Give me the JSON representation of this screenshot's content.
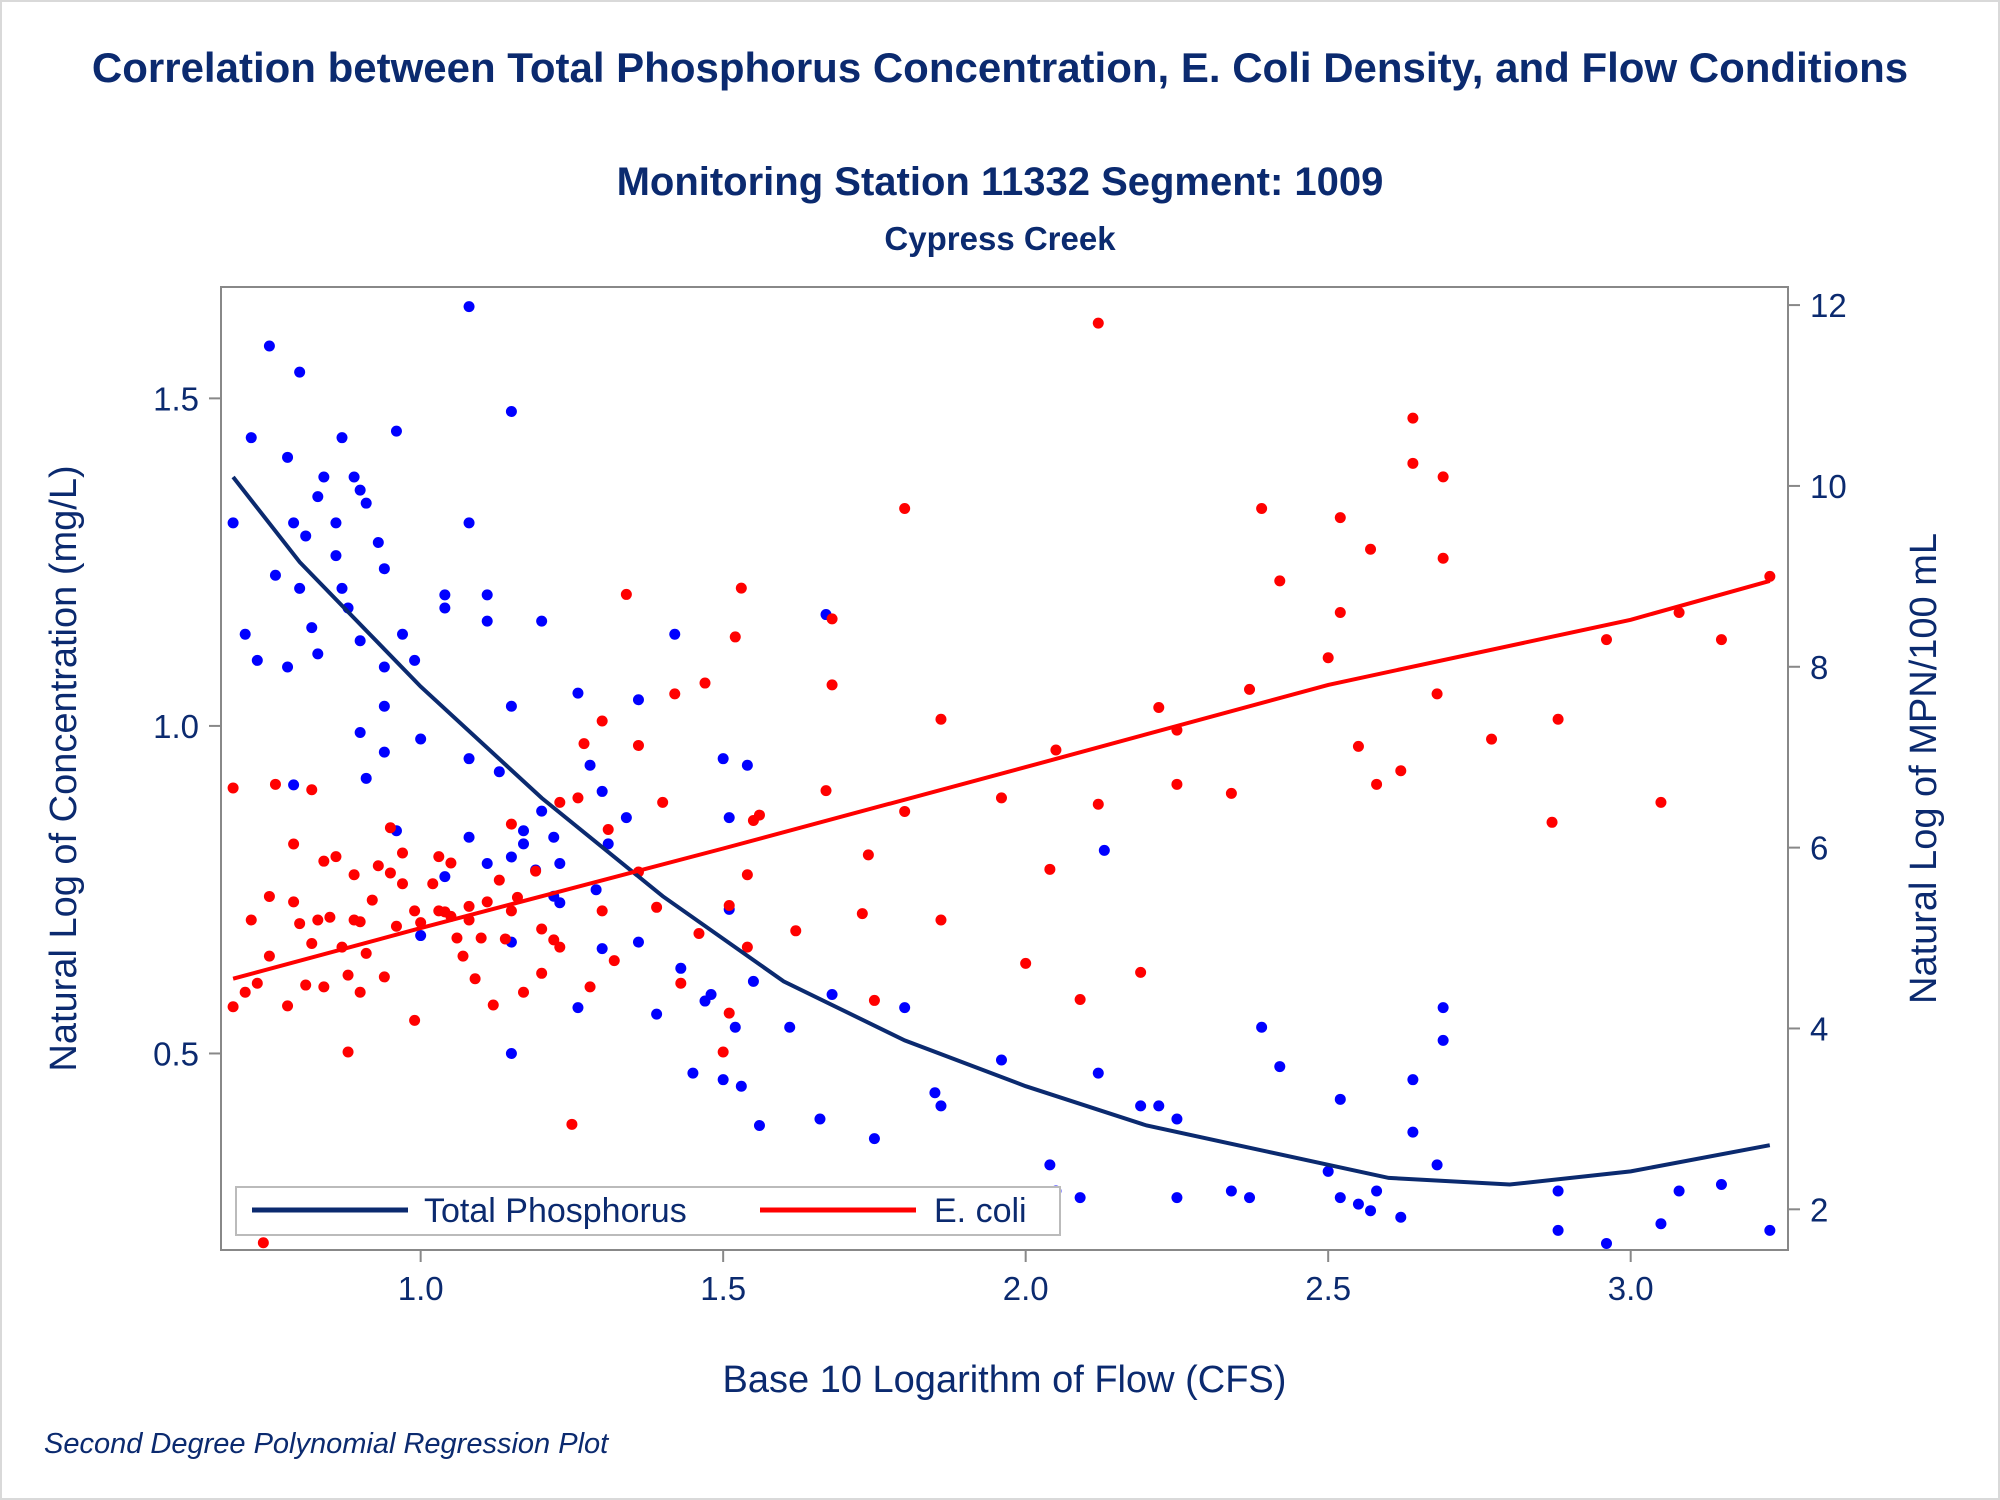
{
  "title": "Correlation between Total Phosphorus Concentration, E. Coli Density, and Flow Conditions",
  "subtitle": "Monitoring Station 11332 Segment: 1009",
  "subtitle2": "Cypress Creek",
  "footnote": "Second Degree Polynomial Regression Plot",
  "colors": {
    "total_phosphorus": "#0b2a6f",
    "tp_points": "#0000ff",
    "e_coli": "#ff0000",
    "text": "#0b2a6f",
    "axis": "#888888"
  },
  "chart_data": {
    "type": "scatter",
    "xlabel": "Base 10 Logarithm of Flow (CFS)",
    "ylabel": "Natural Log of Concentration (mg/L)",
    "y2label": "Natural Log of MPN/100 mL",
    "xlim": [
      0.67,
      3.26
    ],
    "ylim": [
      0.2,
      1.67
    ],
    "y2lim": [
      1.55,
      12.2
    ],
    "xticks": [
      "1.0",
      "1.5",
      "2.0",
      "2.5",
      "3.0"
    ],
    "yticks": [
      "0.5",
      "1.0",
      "1.5"
    ],
    "y2ticks": [
      "2",
      "4",
      "6",
      "8",
      "10",
      "12"
    ],
    "grid": false,
    "legend_position": "bottom-left",
    "legend": [
      "Total Phosphorus",
      "E. coli"
    ],
    "series": [
      {
        "name": "Total Phosphorus",
        "axis": "left",
        "fit": "quadratic",
        "fit_line": {
          "x": [
            0.69,
            0.8,
            1.0,
            1.2,
            1.4,
            1.6,
            1.8,
            2.0,
            2.2,
            2.4,
            2.6,
            2.8,
            3.0,
            3.23
          ],
          "y": [
            1.38,
            1.25,
            1.06,
            0.89,
            0.74,
            0.61,
            0.52,
            0.45,
            0.39,
            0.35,
            0.31,
            0.3,
            0.32,
            0.36
          ]
        },
        "points": [
          [
            0.69,
            1.31
          ],
          [
            0.72,
            1.44
          ],
          [
            0.75,
            1.58
          ],
          [
            0.76,
            1.23
          ],
          [
            0.78,
            1.41
          ],
          [
            0.79,
            1.31
          ],
          [
            0.8,
            1.54
          ],
          [
            0.81,
            1.29
          ],
          [
            0.83,
            1.35
          ],
          [
            0.84,
            1.38
          ],
          [
            0.86,
            1.26
          ],
          [
            0.86,
            1.31
          ],
          [
            0.87,
            1.44
          ],
          [
            0.89,
            1.38
          ],
          [
            0.9,
            1.36
          ],
          [
            0.91,
            1.34
          ],
          [
            0.93,
            1.28
          ],
          [
            0.94,
            1.24
          ],
          [
            0.96,
            1.45
          ],
          [
            0.71,
            1.14
          ],
          [
            0.73,
            1.1
          ],
          [
            0.78,
            1.09
          ],
          [
            0.8,
            1.21
          ],
          [
            0.82,
            1.15
          ],
          [
            0.83,
            1.11
          ],
          [
            0.87,
            1.21
          ],
          [
            0.88,
            1.18
          ],
          [
            0.9,
            1.13
          ],
          [
            0.94,
            1.09
          ],
          [
            0.94,
            1.03
          ],
          [
            0.97,
            1.14
          ],
          [
            0.99,
            1.1
          ],
          [
            1.04,
            1.2
          ],
          [
            1.04,
            1.18
          ],
          [
            1.08,
            1.64
          ],
          [
            1.08,
            1.31
          ],
          [
            1.11,
            1.2
          ],
          [
            1.11,
            1.16
          ],
          [
            1.15,
            1.48
          ],
          [
            1.15,
            1.03
          ],
          [
            1.2,
            1.16
          ],
          [
            0.79,
            0.91
          ],
          [
            0.9,
            0.99
          ],
          [
            0.91,
            0.92
          ],
          [
            0.94,
            0.96
          ],
          [
            0.96,
            0.84
          ],
          [
            1.0,
            0.98
          ],
          [
            1.08,
            0.95
          ],
          [
            1.13,
            0.93
          ],
          [
            1.17,
            0.84
          ],
          [
            1.2,
            0.87
          ],
          [
            1.22,
            0.83
          ],
          [
            1.23,
            0.79
          ],
          [
            1.26,
            1.05
          ],
          [
            1.28,
            0.94
          ],
          [
            1.3,
            0.9
          ],
          [
            1.31,
            0.82
          ],
          [
            1.34,
            0.86
          ],
          [
            1.36,
            1.04
          ],
          [
            1.42,
            1.14
          ],
          [
            1.5,
            0.95
          ],
          [
            1.51,
            0.86
          ],
          [
            1.54,
            0.94
          ],
          [
            1.67,
            1.17
          ],
          [
            1.0,
            0.68
          ],
          [
            1.04,
            0.77
          ],
          [
            1.08,
            0.83
          ],
          [
            1.11,
            0.79
          ],
          [
            1.15,
            0.8
          ],
          [
            1.15,
            0.67
          ],
          [
            1.17,
            0.82
          ],
          [
            1.19,
            0.78
          ],
          [
            1.22,
            0.74
          ],
          [
            1.23,
            0.73
          ],
          [
            1.26,
            0.57
          ],
          [
            1.3,
            0.66
          ],
          [
            1.36,
            0.67
          ],
          [
            1.39,
            0.56
          ],
          [
            1.43,
            0.63
          ],
          [
            1.45,
            0.47
          ],
          [
            1.47,
            0.58
          ],
          [
            1.48,
            0.59
          ],
          [
            1.5,
            0.46
          ],
          [
            1.51,
            0.72
          ],
          [
            1.52,
            0.54
          ],
          [
            1.53,
            0.45
          ],
          [
            1.55,
            0.61
          ],
          [
            1.56,
            0.39
          ],
          [
            1.61,
            0.54
          ],
          [
            1.66,
            0.4
          ],
          [
            1.68,
            0.59
          ],
          [
            1.75,
            0.37
          ],
          [
            1.8,
            0.57
          ],
          [
            1.85,
            0.44
          ],
          [
            1.86,
            0.42
          ],
          [
            1.96,
            0.49
          ],
          [
            2.04,
            0.33
          ],
          [
            2.05,
            0.29
          ],
          [
            2.09,
            0.28
          ],
          [
            2.12,
            0.47
          ],
          [
            2.13,
            0.81
          ],
          [
            2.19,
            0.42
          ],
          [
            2.22,
            0.42
          ],
          [
            2.25,
            0.28
          ],
          [
            2.25,
            0.4
          ],
          [
            2.34,
            0.29
          ],
          [
            2.37,
            0.28
          ],
          [
            2.39,
            0.54
          ],
          [
            2.42,
            0.48
          ],
          [
            2.5,
            0.32
          ],
          [
            2.52,
            0.28
          ],
          [
            2.52,
            0.43
          ],
          [
            2.55,
            0.27
          ],
          [
            2.57,
            0.26
          ],
          [
            2.58,
            0.29
          ],
          [
            2.62,
            0.25
          ],
          [
            2.64,
            0.46
          ],
          [
            2.64,
            0.38
          ],
          [
            2.68,
            0.33
          ],
          [
            2.69,
            0.52
          ],
          [
            2.69,
            0.57
          ],
          [
            2.88,
            0.29
          ],
          [
            2.88,
            0.23
          ],
          [
            2.96,
            0.21
          ],
          [
            3.05,
            0.24
          ],
          [
            3.08,
            0.29
          ],
          [
            3.15,
            0.3
          ],
          [
            3.23,
            0.23
          ],
          [
            1.15,
            0.5
          ],
          [
            1.29,
            0.75
          ]
        ]
      },
      {
        "name": "E. coli",
        "axis": "right",
        "fit": "quadratic",
        "fit_line": {
          "x": [
            0.69,
            1.0,
            1.5,
            2.0,
            2.5,
            3.0,
            3.23
          ],
          "y": [
            4.55,
            5.11,
            5.99,
            6.89,
            7.8,
            8.52,
            8.95
          ]
        },
        "points": [
          [
            0.69,
            6.66
          ],
          [
            0.69,
            4.24
          ],
          [
            0.71,
            4.4
          ],
          [
            0.72,
            5.2
          ],
          [
            0.73,
            4.5
          ],
          [
            0.74,
            1.63
          ],
          [
            0.75,
            4.8
          ],
          [
            0.75,
            5.46
          ],
          [
            0.76,
            6.7
          ],
          [
            0.78,
            4.25
          ],
          [
            0.79,
            5.4
          ],
          [
            0.79,
            6.04
          ],
          [
            0.8,
            5.16
          ],
          [
            0.81,
            4.48
          ],
          [
            0.82,
            4.94
          ],
          [
            0.82,
            6.64
          ],
          [
            0.83,
            5.2
          ],
          [
            0.84,
            4.46
          ],
          [
            0.84,
            5.85
          ],
          [
            0.85,
            5.23
          ],
          [
            0.86,
            5.9
          ],
          [
            0.87,
            4.9
          ],
          [
            0.88,
            3.74
          ],
          [
            0.88,
            4.59
          ],
          [
            0.89,
            5.2
          ],
          [
            0.89,
            5.7
          ],
          [
            0.9,
            5.18
          ],
          [
            0.9,
            4.4
          ],
          [
            0.91,
            4.83
          ],
          [
            0.92,
            5.42
          ],
          [
            0.93,
            5.8
          ],
          [
            0.94,
            4.57
          ],
          [
            0.95,
            5.72
          ],
          [
            0.95,
            6.22
          ],
          [
            0.96,
            5.13
          ],
          [
            0.97,
            5.94
          ],
          [
            0.97,
            5.6
          ],
          [
            0.99,
            4.09
          ],
          [
            0.99,
            5.3
          ],
          [
            1.0,
            5.17
          ],
          [
            1.02,
            5.6
          ],
          [
            1.03,
            5.3
          ],
          [
            1.03,
            5.9
          ],
          [
            1.04,
            5.29
          ],
          [
            1.05,
            5.24
          ],
          [
            1.05,
            5.83
          ],
          [
            1.06,
            5.0
          ],
          [
            1.07,
            4.8
          ],
          [
            1.08,
            5.2
          ],
          [
            1.08,
            5.35
          ],
          [
            1.09,
            4.55
          ],
          [
            1.1,
            5.0
          ],
          [
            1.11,
            5.4
          ],
          [
            1.12,
            4.26
          ],
          [
            1.13,
            5.64
          ],
          [
            1.14,
            4.99
          ],
          [
            1.15,
            5.3
          ],
          [
            1.15,
            6.26
          ],
          [
            1.16,
            5.45
          ],
          [
            1.17,
            4.4
          ],
          [
            1.19,
            5.74
          ],
          [
            1.2,
            4.61
          ],
          [
            1.2,
            5.1
          ],
          [
            1.22,
            4.98
          ],
          [
            1.23,
            4.9
          ],
          [
            1.23,
            6.5
          ],
          [
            1.25,
            2.94
          ],
          [
            1.26,
            6.55
          ],
          [
            1.27,
            7.15
          ],
          [
            1.28,
            4.46
          ],
          [
            1.3,
            5.3
          ],
          [
            1.3,
            7.4
          ],
          [
            1.31,
            6.2
          ],
          [
            1.32,
            4.75
          ],
          [
            1.34,
            8.8
          ],
          [
            1.36,
            7.13
          ],
          [
            1.36,
            5.73
          ],
          [
            1.39,
            5.34
          ],
          [
            1.4,
            6.5
          ],
          [
            1.42,
            7.7
          ],
          [
            1.43,
            4.5
          ],
          [
            1.46,
            5.05
          ],
          [
            1.47,
            7.82
          ],
          [
            1.5,
            3.74
          ],
          [
            1.51,
            5.36
          ],
          [
            1.51,
            4.17
          ],
          [
            1.52,
            8.33
          ],
          [
            1.53,
            8.87
          ],
          [
            1.54,
            4.9
          ],
          [
            1.54,
            5.7
          ],
          [
            1.55,
            6.3
          ],
          [
            1.56,
            6.36
          ],
          [
            1.62,
            5.08
          ],
          [
            1.67,
            6.63
          ],
          [
            1.68,
            8.53
          ],
          [
            1.68,
            7.8
          ],
          [
            1.73,
            5.27
          ],
          [
            1.74,
            5.92
          ],
          [
            1.75,
            4.31
          ],
          [
            1.8,
            9.75
          ],
          [
            1.8,
            6.4
          ],
          [
            1.86,
            7.42
          ],
          [
            1.86,
            5.2
          ],
          [
            1.96,
            6.55
          ],
          [
            2.0,
            4.72
          ],
          [
            2.04,
            5.76
          ],
          [
            2.05,
            7.08
          ],
          [
            2.09,
            4.32
          ],
          [
            2.12,
            11.8
          ],
          [
            2.12,
            6.48
          ],
          [
            2.19,
            4.62
          ],
          [
            2.22,
            7.55
          ],
          [
            2.25,
            6.7
          ],
          [
            2.25,
            7.3
          ],
          [
            2.34,
            6.6
          ],
          [
            2.37,
            7.75
          ],
          [
            2.39,
            9.75
          ],
          [
            2.42,
            8.95
          ],
          [
            2.5,
            8.1
          ],
          [
            2.52,
            8.6
          ],
          [
            2.52,
            9.65
          ],
          [
            2.55,
            7.12
          ],
          [
            2.57,
            9.3
          ],
          [
            2.58,
            6.7
          ],
          [
            2.62,
            6.85
          ],
          [
            2.64,
            10.75
          ],
          [
            2.64,
            10.25
          ],
          [
            2.68,
            7.7
          ],
          [
            2.69,
            10.1
          ],
          [
            2.69,
            9.2
          ],
          [
            2.77,
            7.2
          ],
          [
            2.87,
            6.28
          ],
          [
            2.88,
            7.42
          ],
          [
            2.96,
            8.3
          ],
          [
            3.05,
            6.5
          ],
          [
            3.08,
            8.6
          ],
          [
            3.15,
            8.3
          ],
          [
            3.23,
            9.0
          ]
        ]
      }
    ]
  }
}
